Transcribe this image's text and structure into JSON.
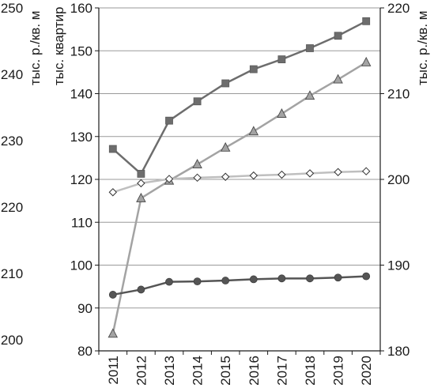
{
  "chart_data": {
    "type": "line",
    "title": "",
    "grid": true,
    "legend": "none",
    "categories": [
      "2011",
      "2012",
      "2013",
      "2014",
      "2015",
      "2016",
      "2017",
      "2018",
      "2019",
      "2020"
    ],
    "axes": {
      "outer_left": {
        "label": "тыс. р./кв. м",
        "ticks": [
          "200",
          "210",
          "220",
          "230",
          "240",
          "250"
        ]
      },
      "inner_left": {
        "label": "тыс. квартир",
        "ylim": [
          80,
          160
        ],
        "ticks": [
          "80",
          "90",
          "100",
          "110",
          "120",
          "130",
          "140",
          "150",
          "160"
        ]
      },
      "right": {
        "label": "тыс. р./кв. м",
        "ylim": [
          180,
          220
        ],
        "ticks": [
          "180",
          "190",
          "200",
          "210",
          "220"
        ]
      }
    },
    "series": [
      {
        "marker": "square",
        "color": "#6d6d6d",
        "axis": "inner_left",
        "values": [
          127.1,
          121.3,
          133.7,
          138.2,
          142.4,
          145.7,
          148.0,
          150.6,
          153.5,
          156.9
        ]
      },
      {
        "marker": "triangle",
        "color": "#a3a3a3",
        "axis": "inner_left",
        "values": [
          84.0,
          115.6,
          119.7,
          123.5,
          127.4,
          131.2,
          135.3,
          139.5,
          143.3,
          147.3
        ]
      },
      {
        "marker": "diamond",
        "color": "#bfbfbf",
        "axis": "inner_left",
        "values": [
          117.0,
          119.1,
          120.1,
          120.4,
          120.6,
          120.9,
          121.1,
          121.4,
          121.7,
          121.9
        ]
      },
      {
        "marker": "circle",
        "color": "#555555",
        "axis": "inner_left",
        "values": [
          93.1,
          94.3,
          96.1,
          96.2,
          96.4,
          96.7,
          96.9,
          96.9,
          97.1,
          97.4
        ]
      }
    ]
  }
}
